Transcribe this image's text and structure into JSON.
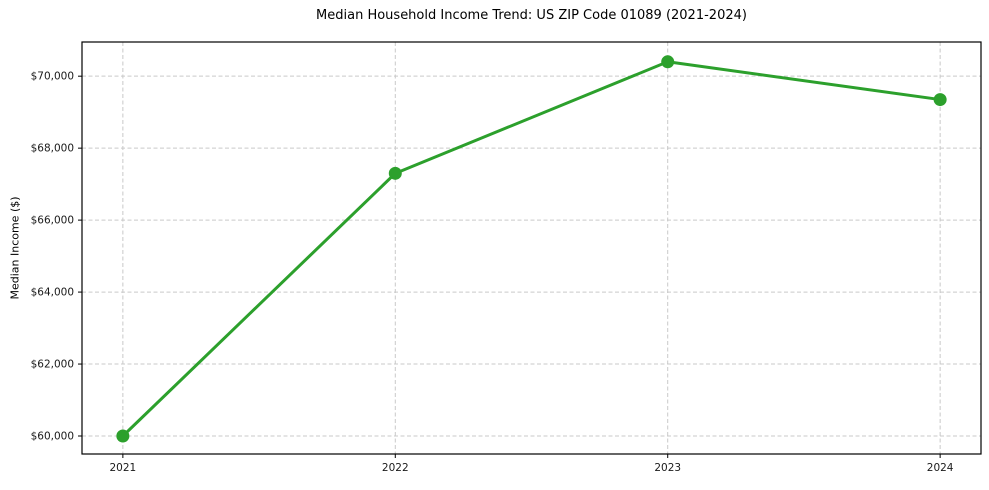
{
  "chart_data": {
    "type": "line",
    "title": "Median Household Income Trend: US ZIP Code 01089 (2021-2024)",
    "xlabel": "",
    "ylabel": "Median Income ($)",
    "x": [
      2021,
      2022,
      2023,
      2024
    ],
    "values": [
      60000,
      67300,
      70400,
      69350
    ],
    "xtick_labels": [
      "2021",
      "2022",
      "2023",
      "2024"
    ],
    "ytick_values": [
      60000,
      62000,
      64000,
      66000,
      68000,
      70000
    ],
    "ytick_labels": [
      "$60,000",
      "$62,000",
      "$64,000",
      "$66,000",
      "$68,000",
      "$70,000"
    ],
    "xlim": [
      2020.85,
      2024.15
    ],
    "ylim": [
      59500,
      70950
    ],
    "grid": true,
    "grid_style": "dashed",
    "legend_position": "none",
    "line_color": "#2ca02c",
    "marker": "circle",
    "marker_radius": 6.5,
    "line_width": 3,
    "grid_color": "#c9c9c9",
    "axis_color": "#000000",
    "tick_label_color": "#1a1a1a",
    "background_color": "#ffffff"
  }
}
